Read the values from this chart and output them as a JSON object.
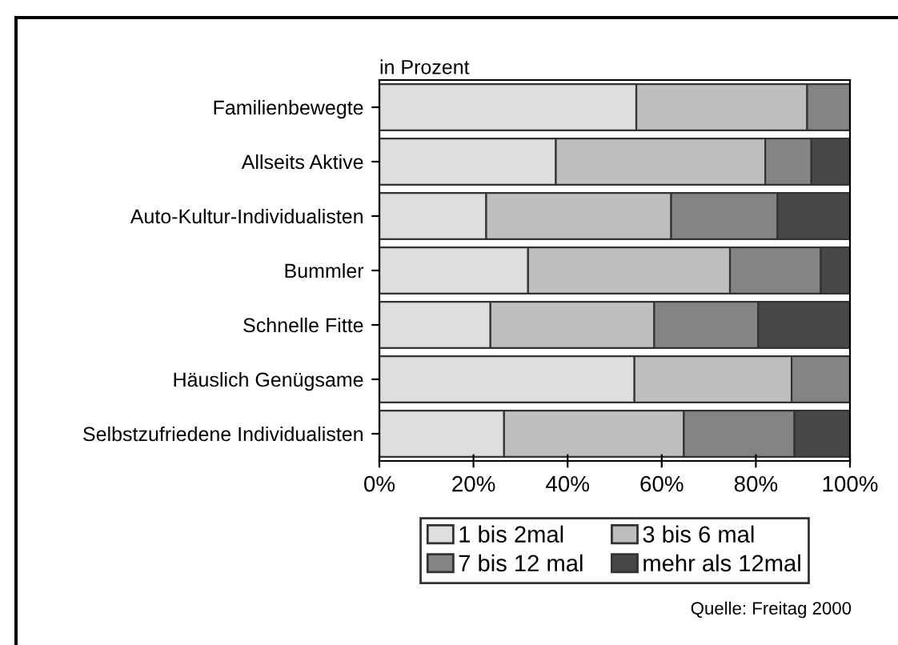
{
  "chart_data": {
    "type": "bar",
    "orientation": "horizontal",
    "stacked": true,
    "categories": [
      "Familienbewegte",
      "Allseits Aktive",
      "Auto-Kultur-Individualisten",
      "Bummler",
      "Schnelle Fitte",
      "Häuslich Genügsame",
      "Selbstzufriedene Individualisten"
    ],
    "series": [
      {
        "name": "1 bis 2mal",
        "color": "#dedede",
        "values": [
          54.6,
          37.5,
          22.7,
          31.6,
          23.6,
          54.2,
          26.5
        ]
      },
      {
        "name": "3 bis 6 mal",
        "color": "#bebebe",
        "values": [
          36.3,
          44.5,
          39.3,
          42.9,
          34.8,
          33.4,
          38.2
        ]
      },
      {
        "name": "7 bis 12 mal",
        "color": "#848484",
        "values": [
          9.1,
          9.8,
          22.6,
          19.3,
          22.1,
          12.4,
          23.5
        ]
      },
      {
        "name": "mehr als 12mal",
        "color": "#484848",
        "values": [
          0,
          8.2,
          15.4,
          6.2,
          19.5,
          0,
          11.8
        ]
      }
    ],
    "xlim": [
      0,
      100
    ],
    "xticks": [
      {
        "value": 0,
        "label": "0%"
      },
      {
        "value": 20,
        "label": "20%"
      },
      {
        "value": 40,
        "label": "40%"
      },
      {
        "value": 60,
        "label": "60%"
      },
      {
        "value": 80,
        "label": "80%"
      },
      {
        "value": 100,
        "label": "100%"
      }
    ],
    "legend": "bottom",
    "annotations": [
      "in Prozent",
      "Quelle: Freitag 2000"
    ]
  }
}
